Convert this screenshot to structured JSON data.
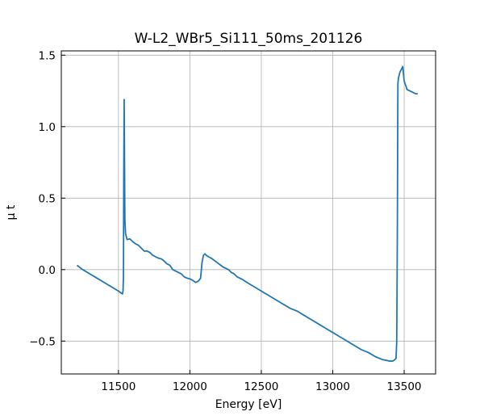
{
  "chart_data": {
    "type": "line",
    "title": "W-L2_WBr5_Si111_50ms_201126",
    "xlabel": "Energy [eV]",
    "ylabel": "μ t",
    "xlim": [
      11100,
      13720
    ],
    "ylim": [
      -0.73,
      1.53
    ],
    "xticks": [
      11500,
      12000,
      12500,
      13000,
      13500
    ],
    "xtick_labels": [
      "11500",
      "12000",
      "12500",
      "13000",
      "13500"
    ],
    "yticks": [
      -0.5,
      0.0,
      0.5,
      1.0,
      1.5
    ],
    "ytick_labels": [
      "−0.5",
      "0.0",
      "0.5",
      "1.0",
      "1.5"
    ],
    "grid": true,
    "color": "#1f77b4",
    "series": [
      {
        "name": "",
        "x": [
          11210,
          11250,
          11300,
          11350,
          11400,
          11450,
          11500,
          11520,
          11528,
          11532,
          11535,
          11537,
          11540,
          11545,
          11550,
          11560,
          11580,
          11600,
          11620,
          11640,
          11660,
          11680,
          11700,
          11720,
          11740,
          11760,
          11780,
          11800,
          11820,
          11840,
          11860,
          11880,
          11900,
          11920,
          11940,
          11960,
          11980,
          12000,
          12020,
          12040,
          12060,
          12075,
          12085,
          12095,
          12105,
          12115,
          12130,
          12150,
          12170,
          12190,
          12210,
          12230,
          12250,
          12270,
          12290,
          12310,
          12330,
          12350,
          12370,
          12400,
          12450,
          12500,
          12550,
          12600,
          12650,
          12700,
          12750,
          12800,
          12850,
          12900,
          12950,
          13000,
          13050,
          13100,
          13150,
          13200,
          13250,
          13300,
          13350,
          13400,
          13420,
          13435,
          13443,
          13448,
          13452,
          13456,
          13460,
          13465,
          13470,
          13480,
          13490,
          13500,
          13510,
          13520,
          13540,
          13560,
          13580,
          13595
        ],
        "y": [
          0.03,
          0.0,
          -0.03,
          -0.06,
          -0.09,
          -0.12,
          -0.15,
          -0.165,
          -0.17,
          -0.15,
          -0.05,
          0.6,
          1.19,
          0.35,
          0.25,
          0.21,
          0.215,
          0.195,
          0.18,
          0.17,
          0.15,
          0.13,
          0.13,
          0.12,
          0.1,
          0.09,
          0.08,
          0.075,
          0.06,
          0.04,
          0.03,
          0.0,
          -0.01,
          -0.02,
          -0.03,
          -0.05,
          -0.06,
          -0.065,
          -0.075,
          -0.09,
          -0.08,
          -0.06,
          0.05,
          0.1,
          0.11,
          0.1,
          0.09,
          0.08,
          0.065,
          0.05,
          0.035,
          0.02,
          0.01,
          0.0,
          -0.02,
          -0.03,
          -0.05,
          -0.06,
          -0.07,
          -0.09,
          -0.12,
          -0.15,
          -0.18,
          -0.21,
          -0.24,
          -0.27,
          -0.29,
          -0.32,
          -0.35,
          -0.38,
          -0.41,
          -0.44,
          -0.47,
          -0.5,
          -0.53,
          -0.56,
          -0.58,
          -0.61,
          -0.63,
          -0.64,
          -0.64,
          -0.63,
          -0.62,
          -0.5,
          0.2,
          1.3,
          1.34,
          1.36,
          1.38,
          1.4,
          1.42,
          1.32,
          1.29,
          1.26,
          1.25,
          1.24,
          1.23,
          1.23
        ]
      }
    ]
  }
}
